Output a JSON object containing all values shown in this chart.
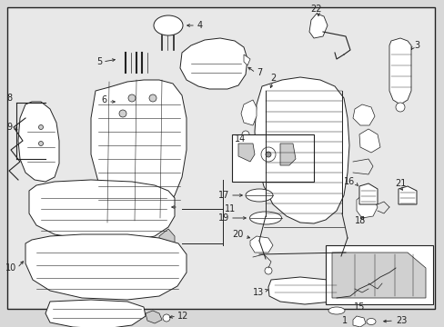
{
  "bg_color": "#d8d8d8",
  "diagram_bg": "#e8e8e8",
  "border_color": "#222222",
  "line_color": "#222222",
  "font_size": 7.0,
  "fig_w": 4.89,
  "fig_h": 3.6,
  "dpi": 100,
  "xlim": [
    0,
    489
  ],
  "ylim": [
    360,
    0
  ],
  "border": [
    8,
    8,
    478,
    340
  ]
}
